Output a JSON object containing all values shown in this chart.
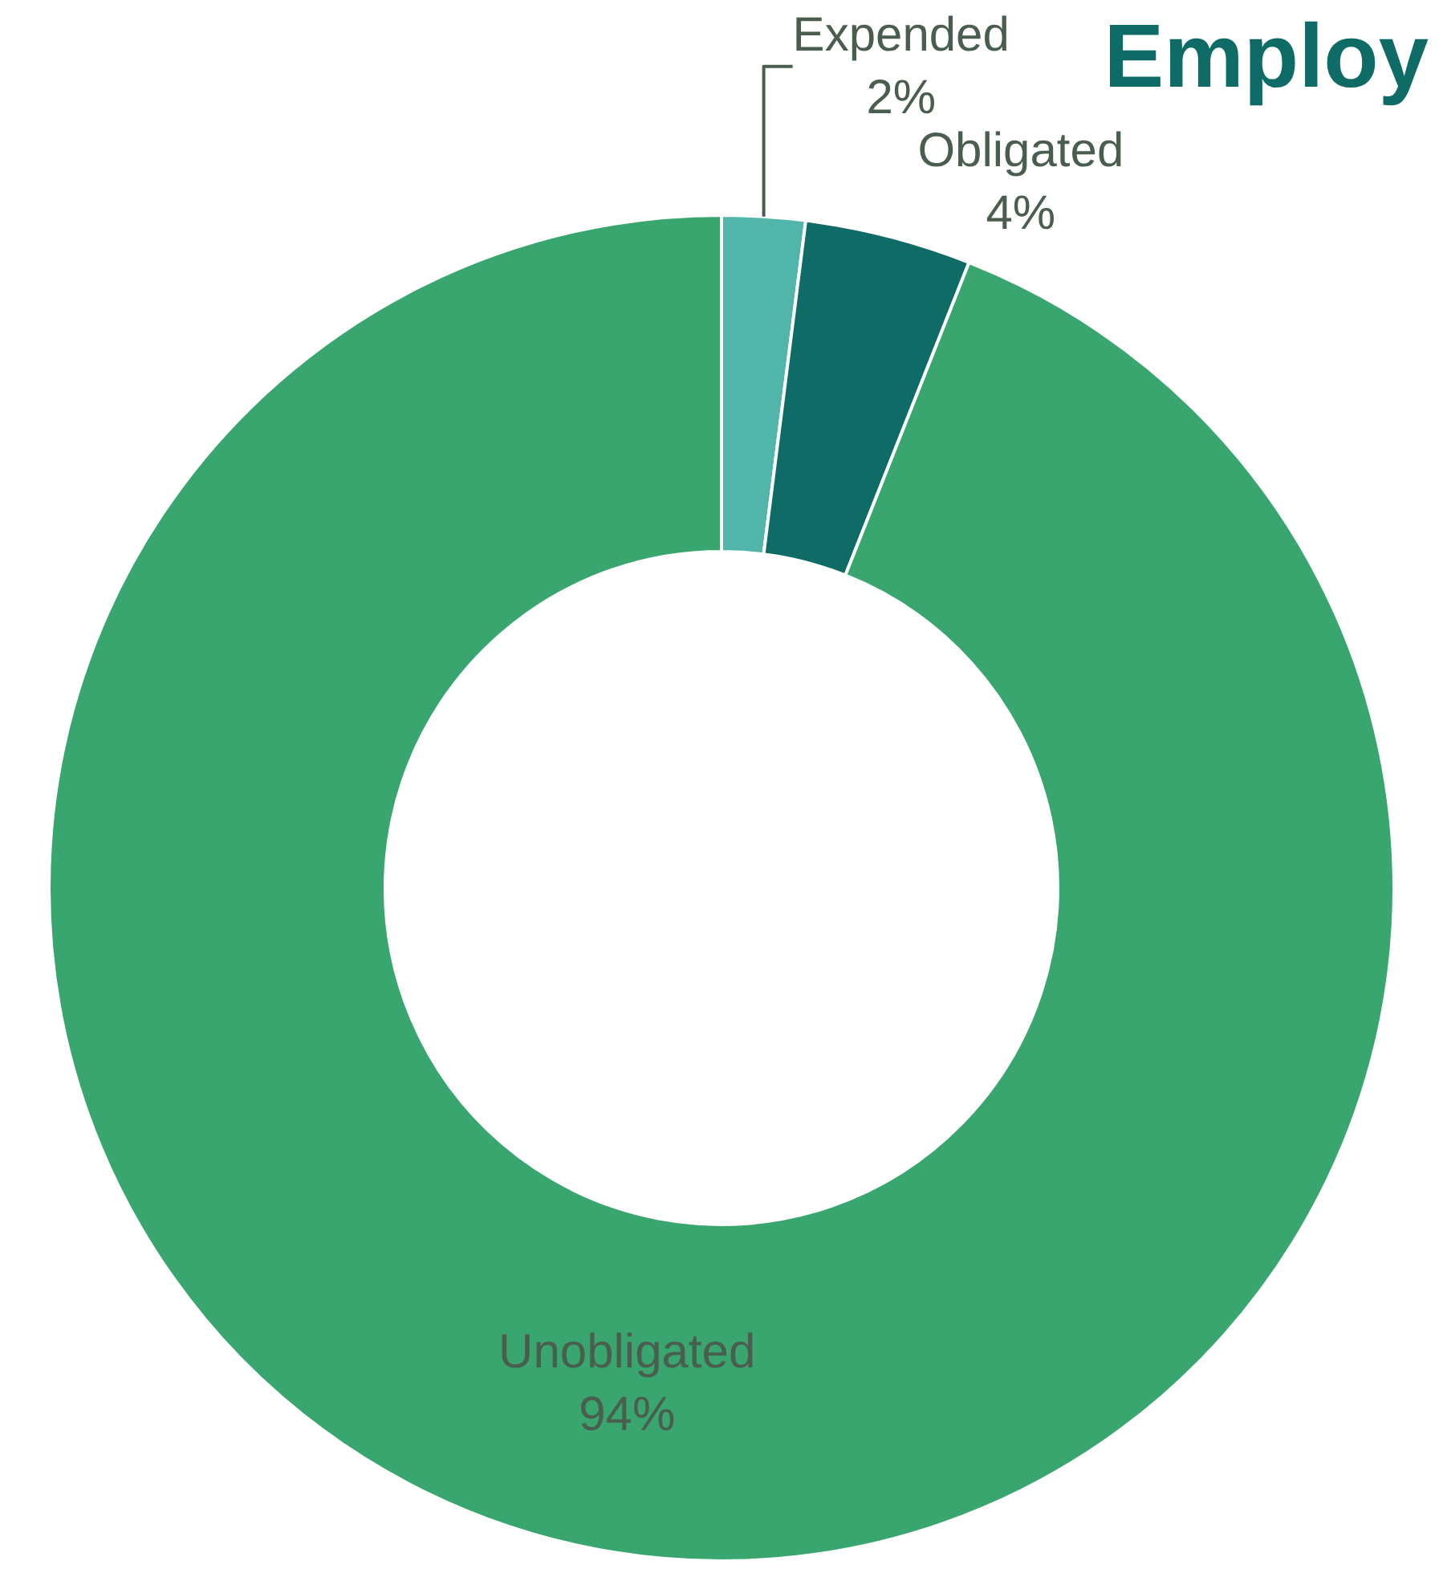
{
  "chart_data": {
    "type": "donut",
    "title": "Employ",
    "categories": [
      "Expended",
      "Obligated",
      "Unobligated"
    ],
    "values": [
      2,
      4,
      94
    ],
    "value_labels": [
      "2%",
      "4%",
      "94%"
    ],
    "colors": [
      "#52b5a9",
      "#0e6b65",
      "#38a66e"
    ],
    "legend": false
  }
}
